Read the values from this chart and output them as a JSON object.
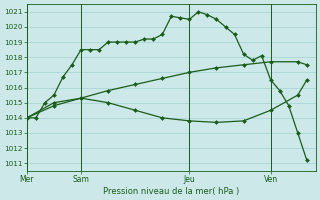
{
  "background_color": "#cce8e8",
  "grid_color": "#99cccc",
  "line_color": "#1a5c1a",
  "marker_color": "#1a5c1a",
  "xlabel": "Pression niveau de la mer( hPa )",
  "ylim": [
    1010.5,
    1021.5
  ],
  "yticks": [
    1011,
    1012,
    1013,
    1014,
    1015,
    1016,
    1017,
    1018,
    1019,
    1020,
    1021
  ],
  "xtick_labels": [
    "Mer",
    "Sam",
    "Jeu",
    "Ven"
  ],
  "xtick_positions": [
    0,
    6,
    18,
    27
  ],
  "vlines": [
    0,
    6,
    18,
    27
  ],
  "xlim": [
    0,
    32
  ],
  "series1_x": [
    0,
    1,
    2,
    3,
    4,
    5,
    6,
    7,
    8,
    9,
    10,
    11,
    12,
    13,
    14,
    15,
    16,
    17,
    18,
    19,
    20,
    21,
    22,
    23,
    24,
    25,
    26,
    27,
    28,
    29,
    30,
    31
  ],
  "series1_y": [
    1014.0,
    1014.0,
    1015.0,
    1015.5,
    1016.7,
    1017.5,
    1018.5,
    1018.5,
    1018.5,
    1019.0,
    1019.0,
    1019.0,
    1019.0,
    1019.2,
    1019.2,
    1019.5,
    1020.7,
    1020.6,
    1020.5,
    1021.0,
    1020.8,
    1020.5,
    1020.0,
    1019.5,
    1018.2,
    1017.8,
    1018.1,
    1016.5,
    1015.8,
    1014.8,
    1013.0,
    1011.2
  ],
  "series2_x": [
    0,
    3,
    6,
    9,
    12,
    15,
    18,
    21,
    24,
    27,
    30,
    31
  ],
  "series2_y": [
    1014.0,
    1014.8,
    1015.3,
    1015.8,
    1016.2,
    1016.6,
    1017.0,
    1017.3,
    1017.5,
    1017.7,
    1017.7,
    1017.5
  ],
  "series3_x": [
    0,
    3,
    6,
    9,
    12,
    15,
    18,
    21,
    24,
    27,
    30,
    31
  ],
  "series3_y": [
    1014.0,
    1015.0,
    1015.3,
    1015.0,
    1014.5,
    1014.0,
    1013.8,
    1013.7,
    1013.8,
    1014.5,
    1015.5,
    1016.5
  ]
}
